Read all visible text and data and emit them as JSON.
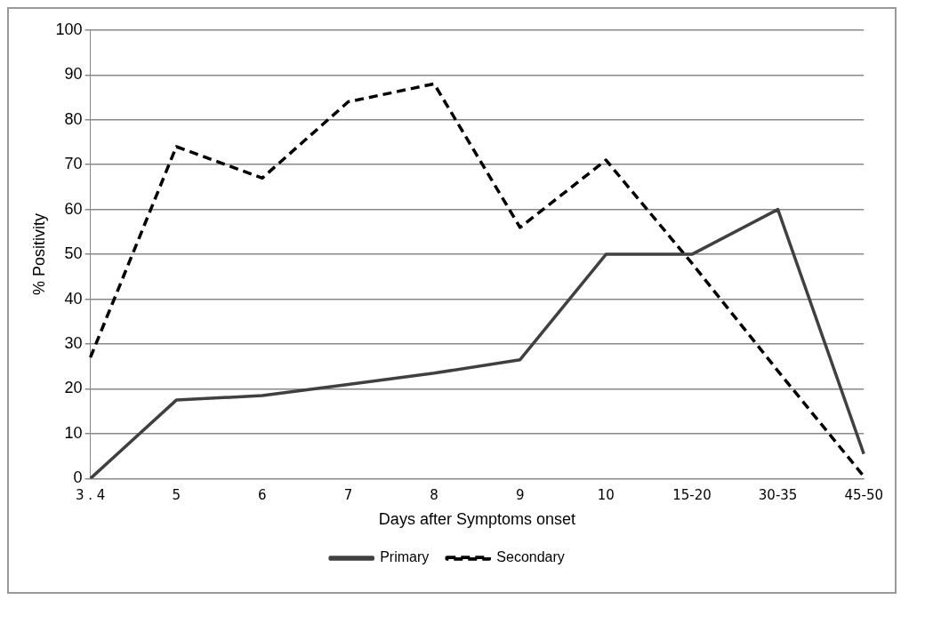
{
  "chart_data": {
    "type": "line",
    "xlabel": "Days after Symptoms onset",
    "ylabel": "% Positivity",
    "categories": [
      "3 . 4",
      "5",
      "6",
      "7",
      "8",
      "9",
      "10",
      "15-20",
      "30-35",
      "45-50"
    ],
    "series": [
      {
        "name": "Primary",
        "color": "#404040",
        "line_style": "solid",
        "values": [
          0,
          17.5,
          18.5,
          21,
          23.5,
          26.5,
          50,
          50,
          60,
          5.5
        ]
      },
      {
        "name": "Secondary",
        "color": "#000000",
        "line_style": "dashed",
        "values": [
          27,
          74,
          67,
          84,
          88,
          56,
          71,
          48,
          24,
          0.5
        ]
      }
    ],
    "ylim": [
      0,
      100
    ],
    "yticks": [
      0,
      10,
      20,
      30,
      40,
      50,
      60,
      70,
      80,
      90,
      100
    ],
    "grid": "y",
    "legend": "bottom",
    "marker": "none"
  }
}
